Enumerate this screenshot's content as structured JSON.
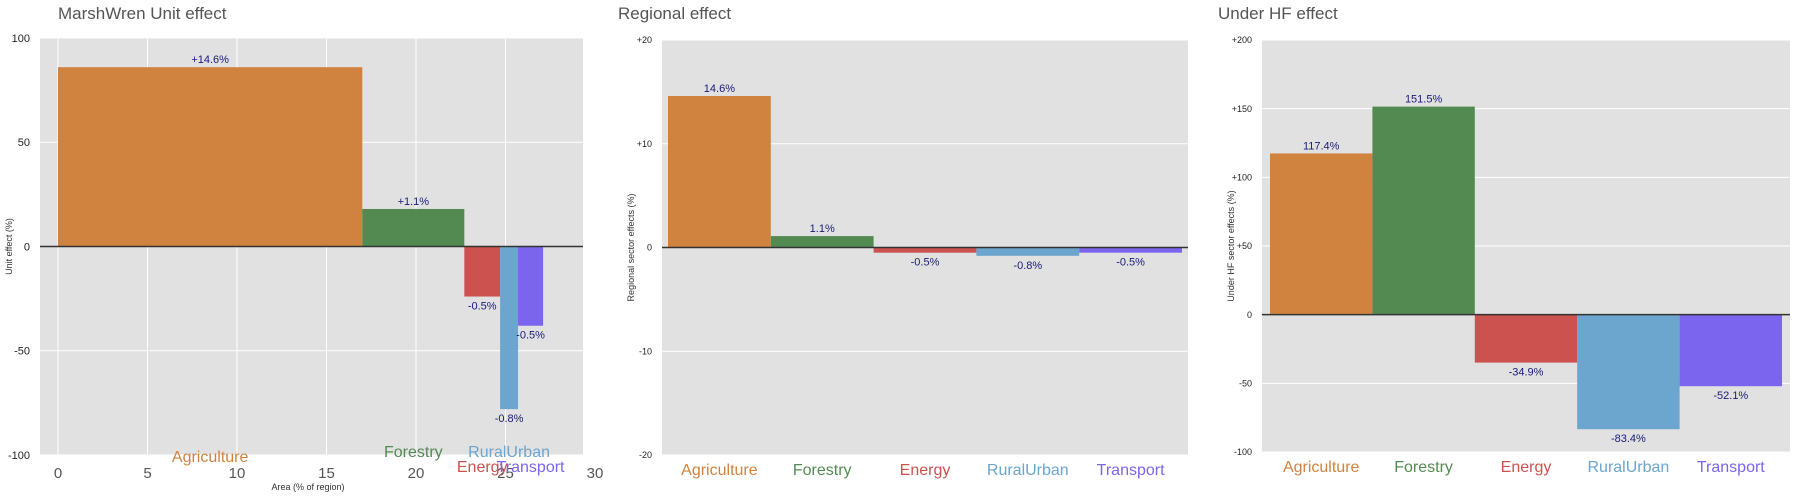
{
  "colors": {
    "Agriculture": "#D0833F",
    "Forestry": "#538A52",
    "Energy": "#CC524F",
    "RuralUrban": "#6CA5CD",
    "Transport": "#7C65EE",
    "plot_bg": "#E1E1E1",
    "value_label": "#1A1A7A",
    "title": "#555555"
  },
  "chart_data": [
    {
      "type": "bar",
      "title": "MarshWren Unit effect",
      "xlabel": "Area (% of region)",
      "ylabel": "Unit effect (%)",
      "xlim": [
        -1,
        30
      ],
      "ylim": [
        -100,
        100
      ],
      "xticks": [
        0,
        5,
        10,
        15,
        20,
        25,
        30
      ],
      "yticks": [
        100,
        50,
        0,
        -50,
        -100
      ],
      "ytick_labels": [
        "100",
        "50",
        "0",
        "-50",
        "-100"
      ],
      "grid": true,
      "bars": [
        {
          "category": "Agriculture",
          "x_start": 0,
          "width": 17,
          "value": 86,
          "label": "+14.6%"
        },
        {
          "category": "Forestry",
          "x_start": 17,
          "width": 5.7,
          "value": 18,
          "label": "+1.1%"
        },
        {
          "category": "Energy",
          "x_start": 22.7,
          "width": 2,
          "value": -24,
          "label": "-0.5%"
        },
        {
          "category": "RuralUrban",
          "x_start": 24.7,
          "width": 1,
          "value": -78,
          "label": "-0.8%"
        },
        {
          "category": "Transport",
          "x_start": 25.7,
          "width": 1.4,
          "value": -38,
          "label": "-0.5%"
        }
      ]
    },
    {
      "type": "bar",
      "title": "Regional effect",
      "xlabel": "",
      "ylabel": "Regional sector effects (%)",
      "ylim": [
        -20,
        20
      ],
      "yticks": [
        20,
        10,
        0,
        -10,
        -20
      ],
      "ytick_labels": [
        "+20",
        "+10",
        "0",
        "-10",
        "-20"
      ],
      "grid": true,
      "categories": [
        "Agriculture",
        "Forestry",
        "Energy",
        "RuralUrban",
        "Transport"
      ],
      "values": [
        14.6,
        1.1,
        -0.5,
        -0.8,
        -0.5
      ],
      "labels": [
        "14.6%",
        "1.1%",
        "-0.5%",
        "-0.8%",
        "-0.5%"
      ]
    },
    {
      "type": "bar",
      "title": "Under HF effect",
      "xlabel": "",
      "ylabel": "Under HF sector effects (%)",
      "ylim": [
        -100,
        200
      ],
      "yticks": [
        200,
        150,
        100,
        50,
        0,
        -50,
        -100
      ],
      "ytick_labels": [
        "+200",
        "+150",
        "+100",
        "+50",
        "0",
        "-50",
        "-100"
      ],
      "grid": true,
      "categories": [
        "Agriculture",
        "Forestry",
        "Energy",
        "RuralUrban",
        "Transport"
      ],
      "values": [
        117.4,
        151.5,
        -34.9,
        -83.4,
        -52.1
      ],
      "labels": [
        "117.4%",
        "151.5%",
        "-34.9%",
        "-83.4%",
        "-52.1%"
      ]
    }
  ]
}
